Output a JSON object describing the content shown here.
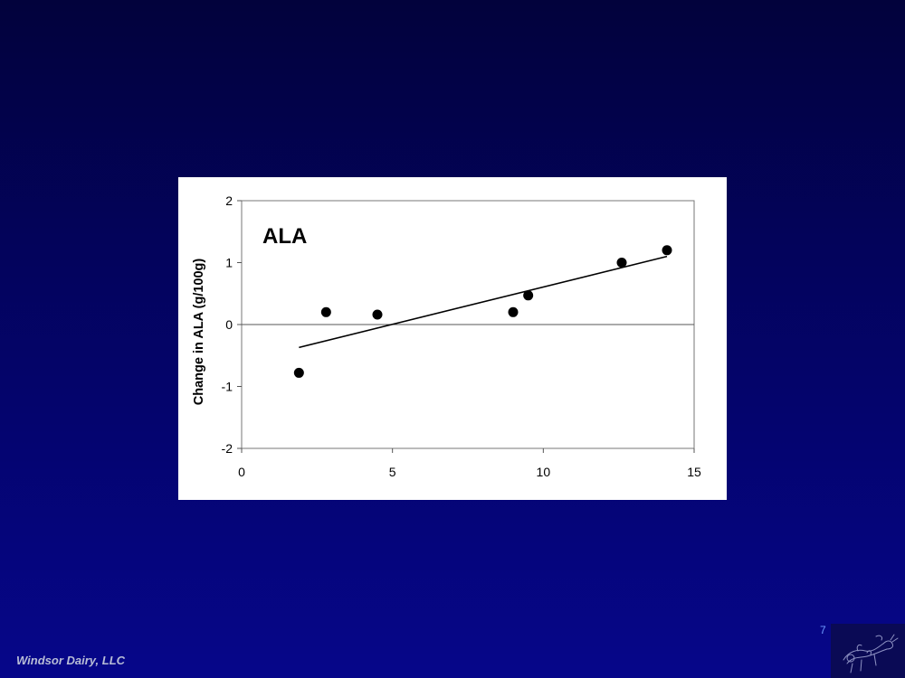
{
  "slide": {
    "footer": "Windsor Dairy, LLC",
    "page_number": "7",
    "logo_icon": "cow-sketch-icon"
  },
  "colors": {
    "background_top": "#02023c",
    "background_bottom": "#06068a",
    "footer_text": "#b8bdd6",
    "page_number": "#6f9cff",
    "chart_ink": "#000000"
  },
  "chart_data": {
    "type": "scatter",
    "title": "ALA",
    "xlabel": "",
    "ylabel": "Change in ALA (g/100g)",
    "xlim": [
      0,
      15
    ],
    "ylim": [
      -2,
      2
    ],
    "xticks": [
      "0",
      "5",
      "10",
      "15"
    ],
    "yticks": [
      "2",
      "1",
      "0",
      "-1",
      "-2"
    ],
    "grid": false,
    "zero_line": true,
    "points": [
      {
        "x": 1.9,
        "y": -0.78
      },
      {
        "x": 2.8,
        "y": 0.2
      },
      {
        "x": 4.5,
        "y": 0.16
      },
      {
        "x": 9.0,
        "y": 0.2
      },
      {
        "x": 9.5,
        "y": 0.47
      },
      {
        "x": 12.6,
        "y": 1.0
      },
      {
        "x": 14.1,
        "y": 1.2
      }
    ],
    "trendline": {
      "x": [
        1.9,
        14.1
      ],
      "y": [
        -0.37,
        1.1
      ]
    }
  }
}
